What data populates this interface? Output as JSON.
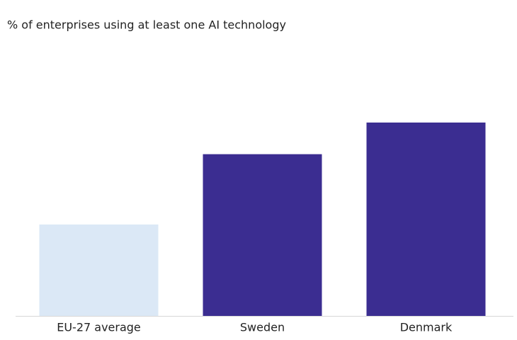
{
  "chart_data": {
    "type": "bar",
    "title": "% of enterprises using at least one AI technology",
    "categories": [
      "EU-27 average",
      "Sweden",
      "Denmark"
    ],
    "values": [
      13,
      23,
      27.5
    ],
    "colors": [
      "#dbe8f6",
      "#3b2d91",
      "#3b2d91"
    ]
  }
}
